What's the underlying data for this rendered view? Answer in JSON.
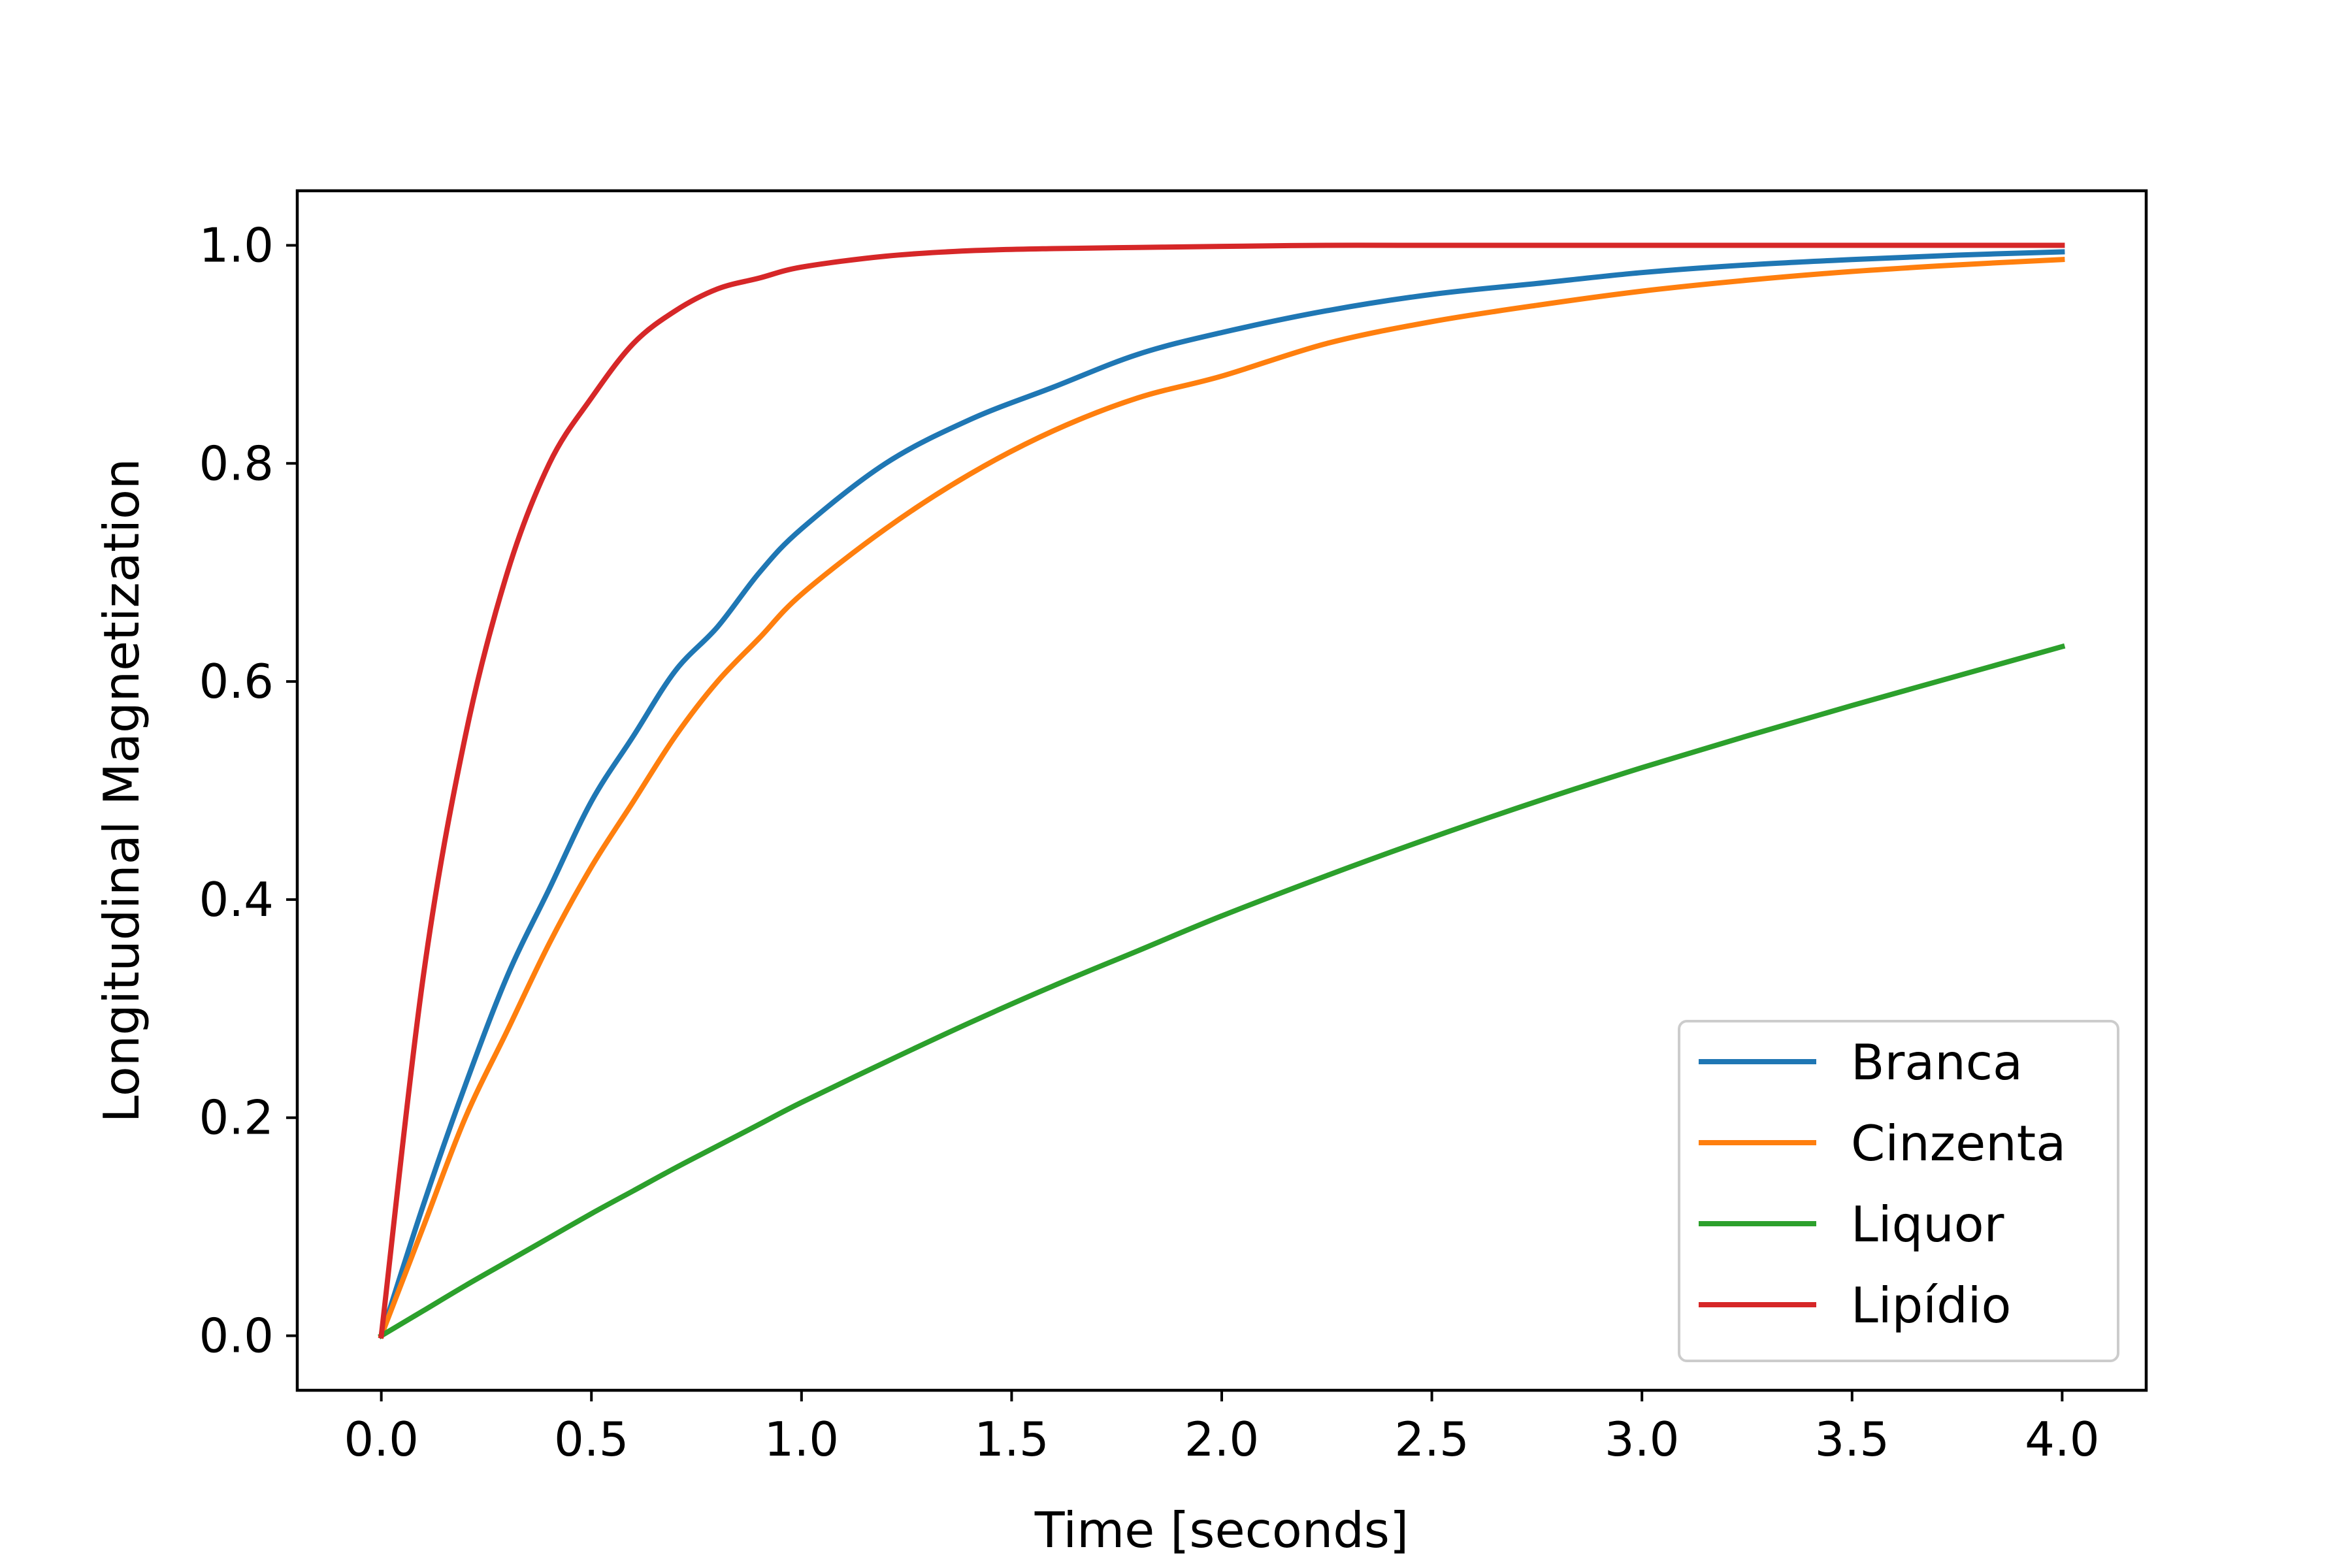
{
  "chart_data": {
    "type": "line",
    "title": "",
    "xlabel": "Time [seconds]",
    "ylabel": "Longitudinal Magnetization",
    "xlim": [
      -0.2,
      4.2
    ],
    "ylim": [
      -0.05,
      1.05
    ],
    "xticks": [
      0.0,
      0.5,
      1.0,
      1.5,
      2.0,
      2.5,
      3.0,
      3.5,
      4.0
    ],
    "xtick_labels": [
      "0.0",
      "0.5",
      "1.0",
      "1.5",
      "2.0",
      "2.5",
      "3.0",
      "3.5",
      "4.0"
    ],
    "yticks": [
      0.0,
      0.2,
      0.4,
      0.6,
      0.8,
      1.0
    ],
    "ytick_labels": [
      "0.0",
      "0.2",
      "0.4",
      "0.6",
      "0.8",
      "1.0"
    ],
    "grid": false,
    "legend_position": "lower-right",
    "x": [
      0.0,
      0.1,
      0.2,
      0.3,
      0.4,
      0.5,
      0.6,
      0.7,
      0.8,
      0.9,
      1.0,
      1.2,
      1.4,
      1.6,
      1.8,
      2.0,
      2.25,
      2.5,
      2.75,
      3.0,
      3.25,
      3.5,
      3.75,
      4.0
    ],
    "series": [
      {
        "name": "Branca",
        "color": "#1f77b4",
        "values": [
          0.0,
          0.12,
          0.23,
          0.33,
          0.41,
          0.49,
          0.55,
          0.61,
          0.65,
          0.7,
          0.74,
          0.8,
          0.84,
          0.87,
          0.9,
          0.92,
          0.94,
          0.955,
          0.965,
          0.975,
          0.982,
          0.987,
          0.991,
          0.994
        ]
      },
      {
        "name": "Cinzenta",
        "color": "#ff7f0e",
        "values": [
          0.0,
          0.1,
          0.2,
          0.28,
          0.36,
          0.43,
          0.49,
          0.55,
          0.6,
          0.64,
          0.68,
          0.74,
          0.79,
          0.83,
          0.86,
          0.88,
          0.91,
          0.93,
          0.945,
          0.958,
          0.968,
          0.976,
          0.982,
          0.987
        ]
      },
      {
        "name": "Liquor",
        "color": "#2ca02c",
        "values": [
          0.0,
          0.023,
          0.046,
          0.068,
          0.09,
          0.112,
          0.133,
          0.154,
          0.174,
          0.194,
          0.214,
          0.251,
          0.287,
          0.321,
          0.353,
          0.385,
          0.422,
          0.457,
          0.49,
          0.521,
          0.55,
          0.578,
          0.605,
          0.632
        ]
      },
      {
        "name": "Lipídio",
        "color": "#d62728",
        "values": [
          0.0,
          0.33,
          0.55,
          0.7,
          0.8,
          0.86,
          0.91,
          0.94,
          0.96,
          0.97,
          0.98,
          0.99,
          0.995,
          0.997,
          0.998,
          0.999,
          1.0,
          1.0,
          1.0,
          1.0,
          1.0,
          1.0,
          1.0,
          1.0
        ]
      }
    ]
  }
}
